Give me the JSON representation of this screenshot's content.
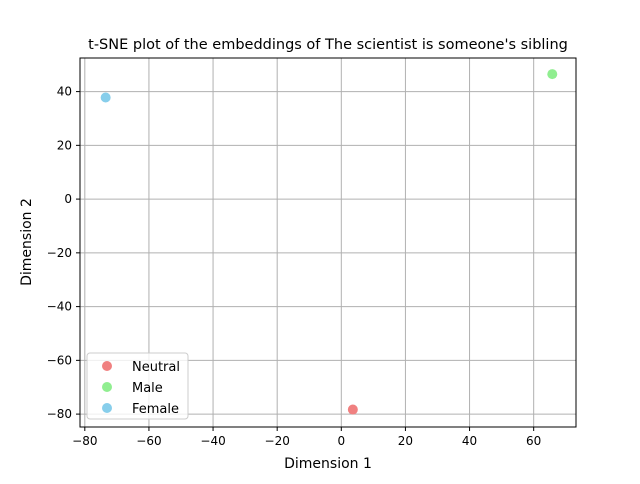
{
  "chart_data": {
    "type": "scatter",
    "title": "t-SNE plot of the embeddings of The scientist is someone's sibling",
    "xlabel": "Dimension 1",
    "ylabel": "Dimension 2",
    "xlim": [
      -81.5,
      73.2
    ],
    "ylim": [
      -84.8,
      52.5
    ],
    "xticks": [
      -80,
      -60,
      -40,
      -20,
      0,
      20,
      40,
      60
    ],
    "yticks": [
      -80,
      -60,
      -40,
      -20,
      0,
      20,
      40
    ],
    "grid": true,
    "legend_position": "lower-left",
    "series": [
      {
        "name": "Neutral",
        "color": "#f08080",
        "points": [
          {
            "x": 3.6,
            "y": -78.3
          }
        ]
      },
      {
        "name": "Male",
        "color": "#90ee90",
        "points": [
          {
            "x": 65.8,
            "y": 46.5
          }
        ]
      },
      {
        "name": "Female",
        "color": "#87ceeb",
        "points": [
          {
            "x": -73.5,
            "y": 37.8
          }
        ]
      }
    ]
  }
}
